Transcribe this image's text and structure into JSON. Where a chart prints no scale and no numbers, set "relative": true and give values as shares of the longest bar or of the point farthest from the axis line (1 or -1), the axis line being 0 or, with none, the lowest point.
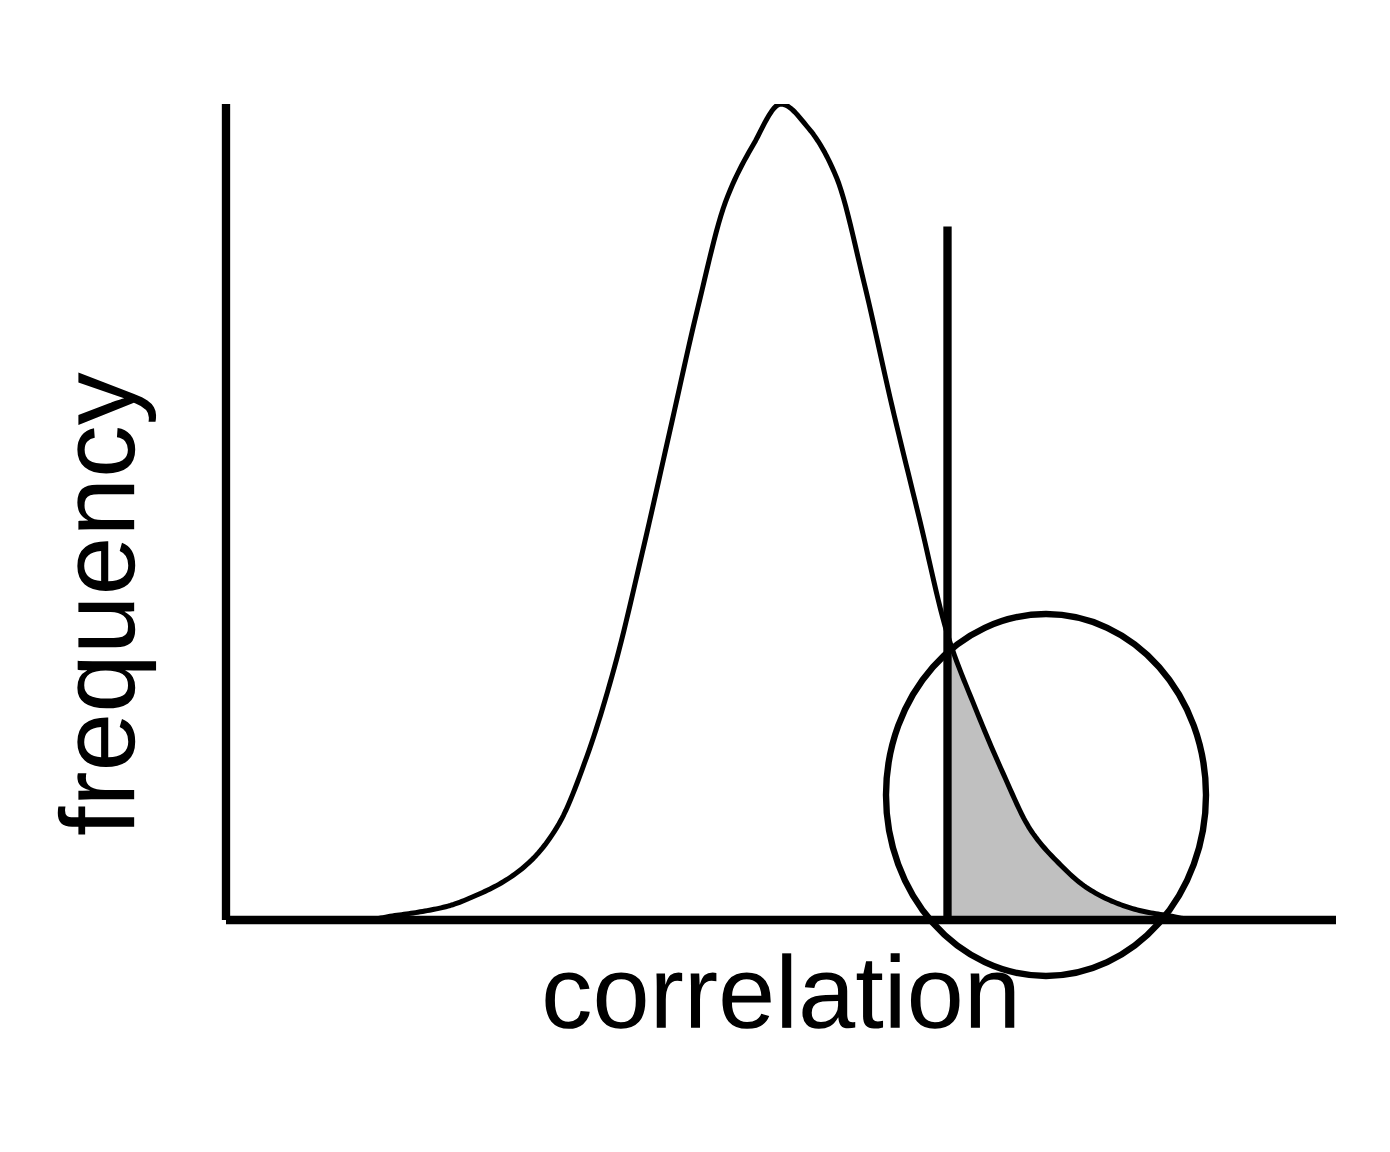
{
  "chart_data": {
    "type": "line",
    "relative": true,
    "xlabel": "correlation",
    "ylabel": "frequency",
    "categories": [
      null,
      null,
      null,
      null,
      null,
      null,
      null,
      null,
      null,
      null,
      null,
      null,
      null,
      null,
      null,
      null,
      null,
      null,
      null,
      null,
      null,
      null,
      null,
      null,
      null,
      null,
      null,
      null,
      null,
      null,
      null,
      null,
      null,
      null,
      null,
      null,
      null,
      null,
      null,
      null,
      null
    ],
    "series": [
      {
        "type": "area",
        "color": "#c0c0c0",
        "values": [
          null,
          null,
          null,
          null,
          null,
          null,
          null,
          null,
          null,
          null,
          null,
          null,
          null,
          null,
          null,
          null,
          null,
          null,
          null,
          null,
          null,
          null,
          null,
          null,
          null,
          null,
          0.35,
          0.26,
          0.18,
          0.11,
          0.07,
          0.04,
          0.022,
          0.011,
          0.005,
          0,
          0,
          0,
          0,
          0,
          0
        ]
      },
      {
        "color": "#000000",
        "values": [
          0,
          0,
          0,
          0,
          0,
          0,
          0.005,
          0.01,
          0.017,
          0.03,
          0.047,
          0.073,
          0.118,
          0.2,
          0.31,
          0.45,
          0.6,
          0.75,
          0.88,
          0.95,
          1,
          0.97,
          0.91,
          0.78,
          0.63,
          0.49,
          0.35,
          0.26,
          0.18,
          0.11,
          0.07,
          0.04,
          0.022,
          0.011,
          0.005,
          0,
          0,
          0,
          0,
          0,
          0
        ]
      }
    ]
  }
}
